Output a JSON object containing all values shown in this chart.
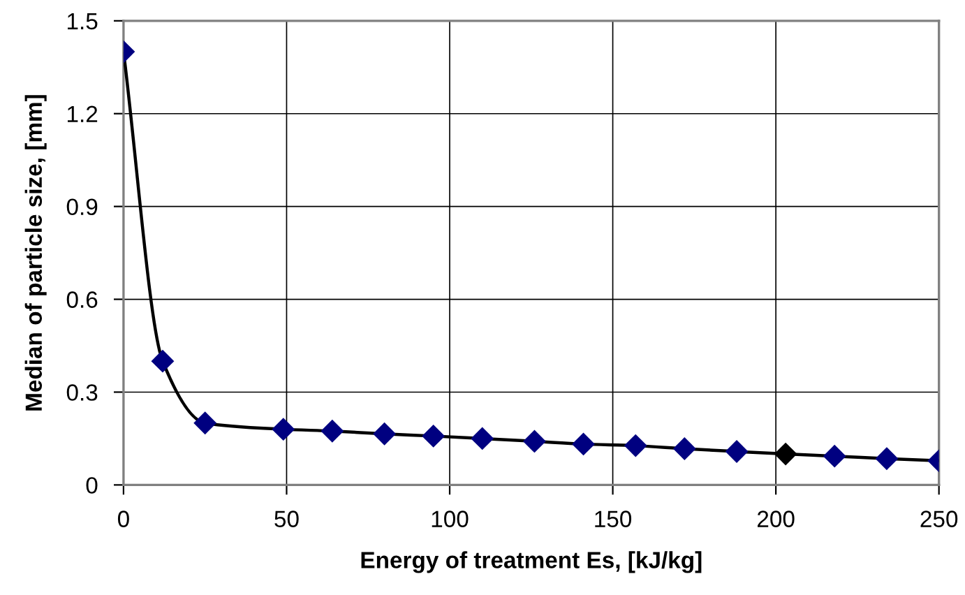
{
  "chart_data": {
    "type": "line",
    "xlabel": "Energy of treatment Es, [kJ/kg]",
    "ylabel": "Median of particle size, [mm]",
    "x": [
      0,
      12,
      25,
      49,
      64,
      80,
      95,
      110,
      126,
      141,
      157,
      172,
      188,
      203,
      218,
      234,
      250
    ],
    "series": [
      {
        "color": "#000000",
        "values": [
          1.4,
          0.4,
          0.2,
          0.18,
          0.174,
          0.165,
          0.158,
          0.15,
          0.141,
          0.132,
          0.127,
          0.117,
          0.108,
          0.1,
          0.093,
          0.085,
          0.078
        ],
        "colors": [
          "#000080",
          "#000080",
          "#000080",
          "#000080",
          "#000080",
          "#000080",
          "#000080",
          "#000080",
          "#000080",
          "#000080",
          "#000080",
          "#000080",
          "#000080",
          "#000000",
          "#000080",
          "#000080",
          "#000080"
        ]
      }
    ],
    "xlim": [
      0,
      250
    ],
    "xticks": [
      0,
      50,
      100,
      150,
      200,
      250
    ],
    "ylim": [
      0,
      1.5
    ],
    "yticks": [
      0,
      0.3,
      0.6,
      0.9,
      1.2,
      1.5
    ],
    "grid": true,
    "marker": "diamond",
    "line_style": "solid"
  }
}
